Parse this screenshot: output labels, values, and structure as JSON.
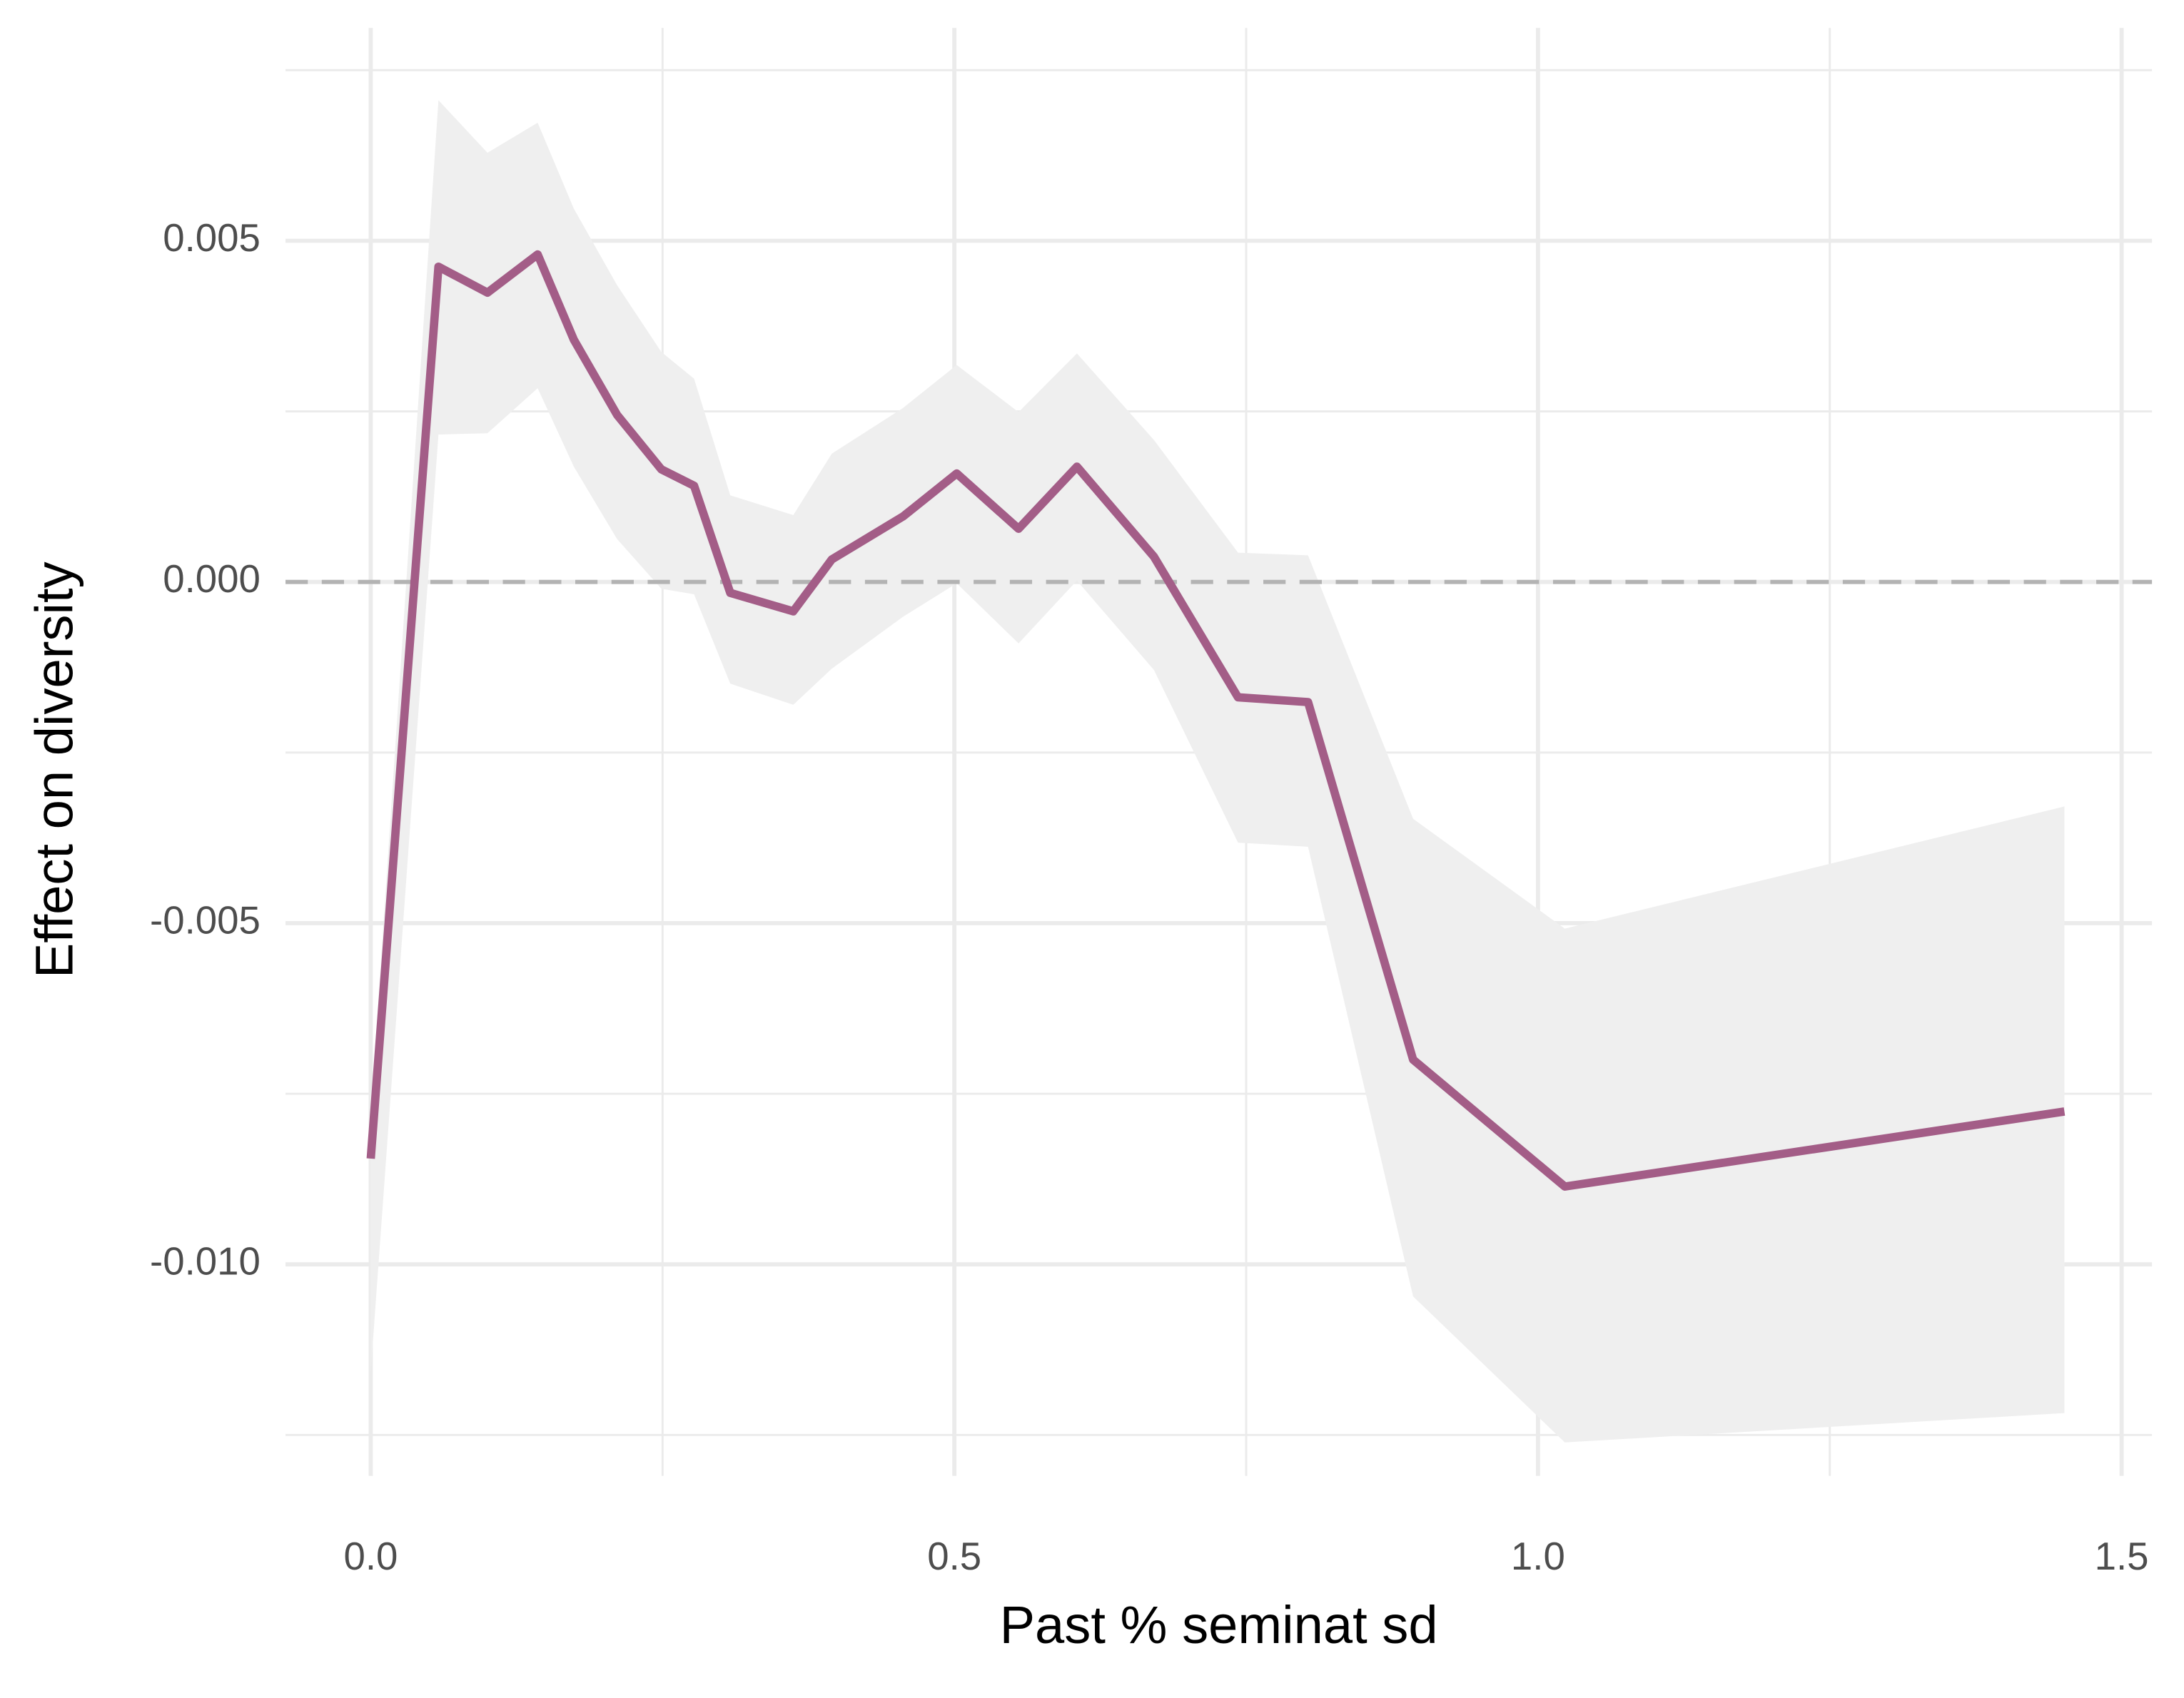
{
  "chart_data": {
    "type": "line",
    "x_label": "Past % seminat sd",
    "y_label": "Effect on diversity",
    "x": [
      0.0,
      0.058,
      0.1,
      0.143,
      0.174,
      0.211,
      0.249,
      0.277,
      0.308,
      0.362,
      0.395,
      0.456,
      0.502,
      0.555,
      0.605,
      0.671,
      0.743,
      0.803,
      0.893,
      1.023,
      1.451
    ],
    "values": [
      -0.00845,
      0.00462,
      0.00424,
      0.0048,
      0.00355,
      0.00245,
      0.00165,
      0.00141,
      -0.00016,
      -0.00043,
      0.00033,
      0.00096,
      0.00159,
      0.00078,
      0.00169,
      0.00037,
      -0.00169,
      -0.00176,
      -0.007,
      -0.00886,
      -0.00776
    ],
    "lower": [
      -0.01157,
      0.00216,
      0.00218,
      0.00284,
      0.00169,
      0.00063,
      -0.0001,
      -0.00018,
      -0.00149,
      -0.0018,
      -0.00127,
      -0.00051,
      -2e-05,
      -0.0009,
      2e-05,
      -0.00129,
      -0.00382,
      -0.00388,
      -0.01047,
      -0.01261,
      -0.01218
    ],
    "upper": [
      -0.0078,
      0.00706,
      0.00629,
      0.00673,
      0.00547,
      0.00435,
      0.00337,
      0.00298,
      0.00127,
      0.00098,
      0.00188,
      0.00255,
      0.00318,
      0.00249,
      0.00335,
      0.00208,
      0.00043,
      0.00039,
      -0.00347,
      -0.00508,
      -0.00329
    ],
    "color": "#a35d87",
    "band_color": "#efefef",
    "hline": 0,
    "xlim": [
      -0.073,
      1.526
    ],
    "ylim": [
      -0.0131,
      0.00812
    ],
    "xticks": [
      {
        "value": 0,
        "label": "0.0"
      },
      {
        "value": 0.5,
        "label": "0.5"
      },
      {
        "value": 1,
        "label": "1.0"
      },
      {
        "value": 1.5,
        "label": "1.5"
      }
    ],
    "yticks": [
      {
        "value": -0.01,
        "label": "-0.010"
      },
      -0.005,
      {
        "value": 0,
        "label": "0.000"
      },
      0.005
    ],
    "minor_xticks": [
      0.25,
      0.75,
      1.25
    ],
    "minor_yticks": [
      -0.0125,
      -0.0075,
      -0.0025,
      0.0025,
      0.0075
    ],
    "grid": true
  }
}
